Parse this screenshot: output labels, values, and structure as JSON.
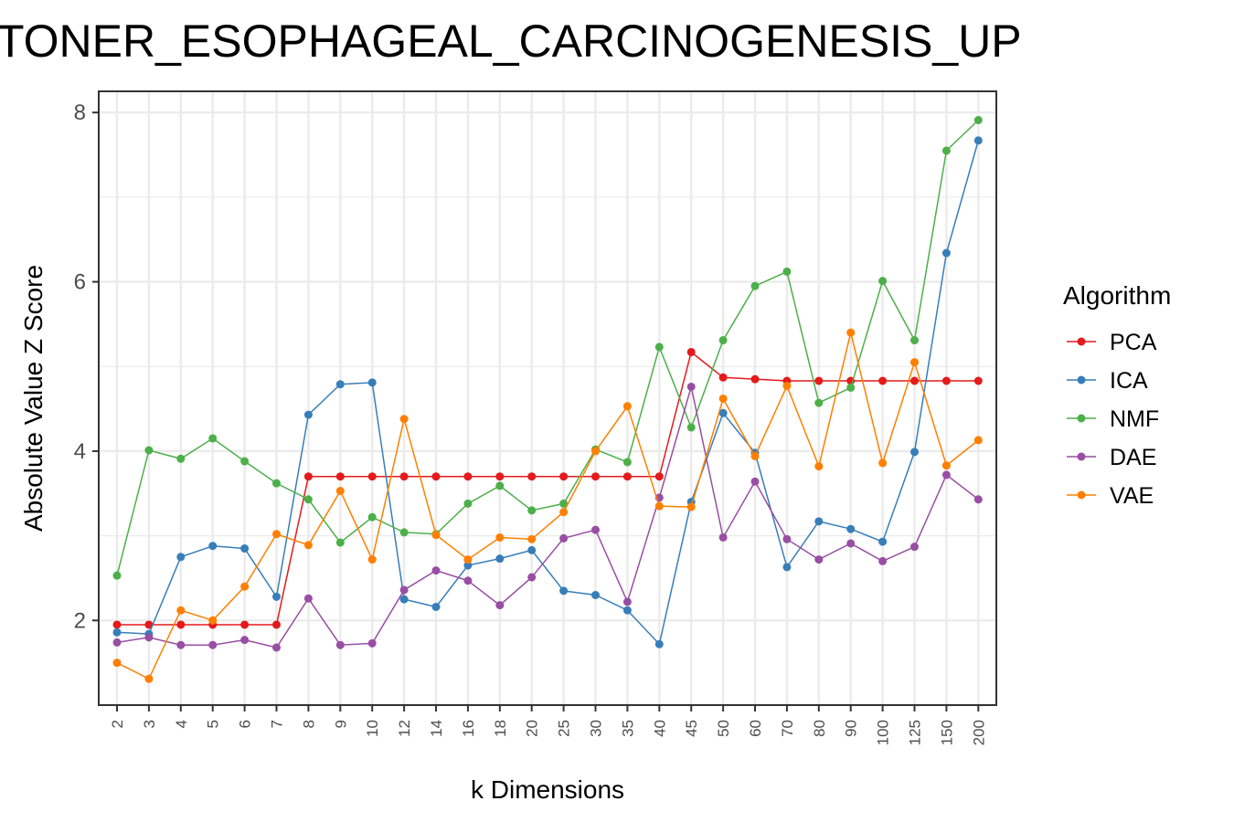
{
  "chart_data": {
    "type": "line",
    "title": "TONER_ESOPHAGEAL_CARCINOGENESIS_UP",
    "xlabel": "k Dimensions",
    "ylabel": "Absolute Value Z Score",
    "categories": [
      "2",
      "3",
      "4",
      "5",
      "6",
      "7",
      "8",
      "9",
      "10",
      "12",
      "14",
      "16",
      "18",
      "20",
      "25",
      "30",
      "35",
      "40",
      "45",
      "50",
      "60",
      "70",
      "80",
      "90",
      "100",
      "125",
      "150",
      "200"
    ],
    "y_ticks": [
      2,
      4,
      6,
      8
    ],
    "ylim": [
      1.0,
      8.25
    ],
    "grid": true,
    "legend": {
      "title": "Algorithm",
      "placement": "right"
    },
    "series": [
      {
        "name": "PCA",
        "color": "#e41a1c",
        "values": [
          1.95,
          1.95,
          1.95,
          1.95,
          1.95,
          1.95,
          3.7,
          3.7,
          3.7,
          3.7,
          3.7,
          3.7,
          3.7,
          3.7,
          3.7,
          3.7,
          3.7,
          3.7,
          5.17,
          4.87,
          4.85,
          4.83,
          4.83,
          4.83,
          4.83,
          4.83,
          4.83,
          4.83
        ]
      },
      {
        "name": "ICA",
        "color": "#377eb8",
        "values": [
          1.86,
          1.84,
          2.75,
          2.88,
          2.85,
          2.28,
          4.43,
          4.79,
          4.81,
          2.25,
          2.16,
          2.65,
          2.73,
          2.83,
          2.35,
          2.3,
          2.12,
          1.72,
          3.4,
          4.45,
          3.98,
          2.63,
          3.17,
          3.08,
          2.93,
          3.99,
          6.34,
          7.67
        ]
      },
      {
        "name": "NMF",
        "color": "#4daf4a",
        "values": [
          2.53,
          4.01,
          3.91,
          4.15,
          3.88,
          3.62,
          3.43,
          2.92,
          3.22,
          3.04,
          3.02,
          3.38,
          3.59,
          3.3,
          3.38,
          4.02,
          3.87,
          5.23,
          4.28,
          5.31,
          5.95,
          6.12,
          4.57,
          4.75,
          6.01,
          5.31,
          7.55,
          7.91
        ]
      },
      {
        "name": "DAE",
        "color": "#984ea3",
        "values": [
          1.74,
          1.8,
          1.71,
          1.71,
          1.77,
          1.68,
          2.26,
          1.71,
          1.73,
          2.36,
          2.59,
          2.47,
          2.18,
          2.51,
          2.97,
          3.07,
          2.22,
          3.45,
          4.76,
          2.98,
          3.64,
          2.96,
          2.72,
          2.91,
          2.7,
          2.87,
          3.72,
          3.43
        ]
      },
      {
        "name": "VAE",
        "color": "#ff7f00",
        "values": [
          1.5,
          1.31,
          2.12,
          2.0,
          2.4,
          3.02,
          2.89,
          3.53,
          2.72,
          4.38,
          3.01,
          2.72,
          2.98,
          2.96,
          3.28,
          4.0,
          4.53,
          3.35,
          3.34,
          4.62,
          3.94,
          4.77,
          3.82,
          5.4,
          3.86,
          5.05,
          3.83,
          4.13
        ]
      }
    ]
  }
}
